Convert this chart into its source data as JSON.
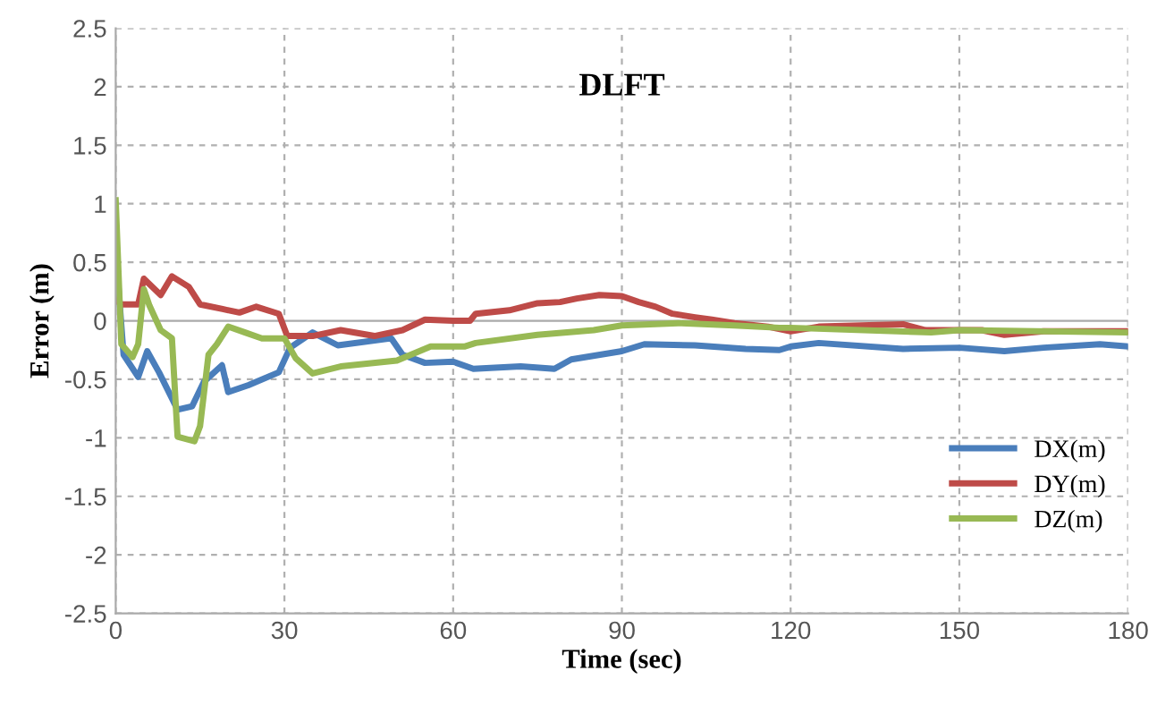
{
  "chart_data": {
    "type": "line",
    "title": "DLFT",
    "xlabel": "Time (sec)",
    "ylabel": "Error (m)",
    "xlim": [
      0,
      180
    ],
    "xticks": [
      0,
      30,
      60,
      90,
      120,
      150,
      180
    ],
    "ylim": [
      -2.5,
      2.5
    ],
    "yticks": [
      -2.5,
      -2,
      -1.5,
      -1,
      -0.5,
      0,
      0.5,
      1,
      1.5,
      2,
      2.5
    ],
    "grid": true,
    "legend": "bottom right",
    "marker": "none",
    "line_style": "solid",
    "series": [
      {
        "name": "DX(m)",
        "color": "#4a7ebb",
        "x": [
          0,
          1.4,
          4,
          5.6,
          7.7,
          11,
          13.6,
          15.7,
          18.9,
          20,
          23.6,
          29,
          31,
          35,
          39.5,
          49,
          51,
          55,
          60,
          63.6,
          72,
          78,
          81,
          90,
          94,
          103,
          112,
          118,
          120,
          125,
          140,
          150,
          158,
          165,
          175,
          180
        ],
        "values": [
          0.6,
          -0.29,
          -0.48,
          -0.26,
          -0.44,
          -0.76,
          -0.73,
          -0.52,
          -0.38,
          -0.61,
          -0.55,
          -0.44,
          -0.23,
          -0.1,
          -0.21,
          -0.15,
          -0.29,
          -0.36,
          -0.35,
          -0.41,
          -0.39,
          -0.41,
          -0.33,
          -0.26,
          -0.2,
          -0.21,
          -0.24,
          -0.25,
          -0.22,
          -0.19,
          -0.24,
          -0.23,
          -0.26,
          -0.23,
          -0.2,
          -0.22
        ]
      },
      {
        "name": "DY(m)",
        "color": "#be4b48",
        "x": [
          0,
          1,
          4,
          5,
          8,
          10,
          13,
          15,
          19,
          22,
          25,
          29,
          30.5,
          35,
          40,
          46,
          51,
          55,
          60,
          63,
          64,
          70,
          75,
          79,
          82,
          86,
          90,
          93,
          96,
          99,
          103,
          106,
          110,
          116,
          120,
          125,
          140,
          144,
          154,
          158,
          165,
          180
        ],
        "values": [
          0.18,
          0.14,
          0.14,
          0.36,
          0.22,
          0.38,
          0.29,
          0.14,
          0.1,
          0.07,
          0.12,
          0.06,
          -0.13,
          -0.13,
          -0.08,
          -0.13,
          -0.08,
          0.01,
          0.0,
          0.0,
          0.06,
          0.09,
          0.15,
          0.16,
          0.19,
          0.22,
          0.21,
          0.16,
          0.12,
          0.06,
          0.03,
          0.01,
          -0.02,
          -0.05,
          -0.09,
          -0.05,
          -0.03,
          -0.08,
          -0.08,
          -0.12,
          -0.09,
          -0.09
        ]
      },
      {
        "name": "DZ(m)",
        "color": "#98b954",
        "x": [
          0,
          1,
          3,
          4,
          5,
          6,
          8,
          10,
          11,
          14,
          15,
          16.5,
          18,
          20,
          23,
          26,
          30,
          32,
          35,
          40,
          50,
          56,
          62,
          64,
          75,
          85,
          90,
          100,
          110,
          118,
          120,
          145,
          150,
          180
        ],
        "values": [
          1.03,
          -0.2,
          -0.31,
          -0.2,
          0.27,
          0.13,
          -0.08,
          -0.15,
          -0.99,
          -1.03,
          -0.9,
          -0.29,
          -0.2,
          -0.05,
          -0.1,
          -0.15,
          -0.15,
          -0.32,
          -0.45,
          -0.39,
          -0.34,
          -0.22,
          -0.22,
          -0.19,
          -0.12,
          -0.08,
          -0.04,
          -0.02,
          -0.04,
          -0.06,
          -0.06,
          -0.1,
          -0.08,
          -0.1
        ]
      }
    ]
  }
}
